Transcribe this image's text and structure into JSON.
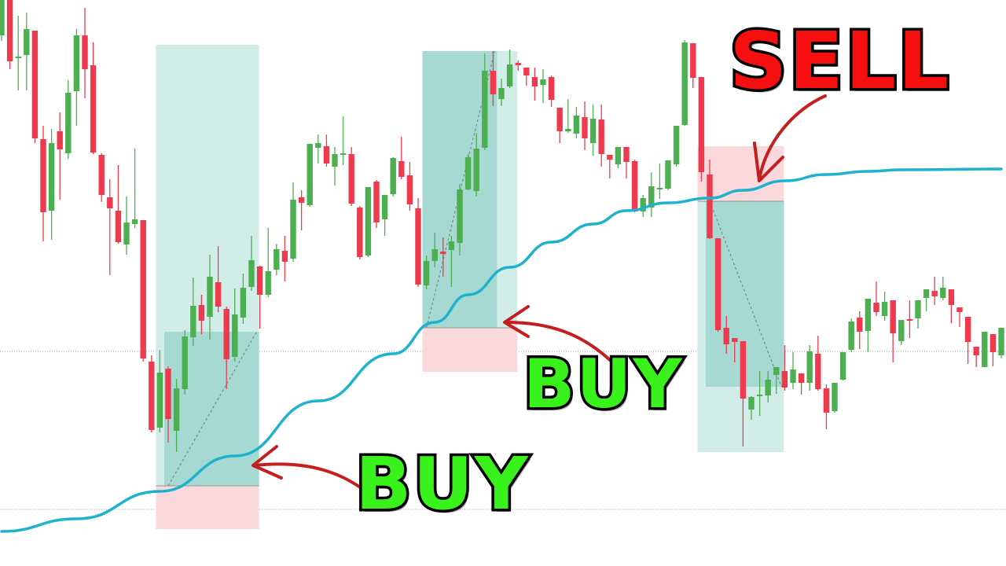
{
  "chart_data": {
    "type": "candlestick",
    "title": "",
    "xlabel": "",
    "ylabel": "",
    "ylim": [
      0,
      72
    ],
    "grid": false,
    "candle_format": [
      "open",
      "high",
      "low",
      "close"
    ],
    "candles": [
      [
        67.5,
        72,
        66.8,
        72
      ],
      [
        72,
        72,
        63.2,
        64.2
      ],
      [
        64.7,
        70,
        60.5,
        64.8
      ],
      [
        65,
        70.4,
        60.5,
        68.3
      ],
      [
        68.1,
        68.1,
        53.8,
        54.4
      ],
      [
        54.3,
        56,
        41.3,
        45
      ],
      [
        45.2,
        55.6,
        41.5,
        53.8
      ],
      [
        55.3,
        57.7,
        46.6,
        53
      ],
      [
        52.5,
        61.8,
        51.8,
        60.2
      ],
      [
        60.4,
        68.3,
        56,
        67.5
      ],
      [
        67.5,
        71,
        59.5,
        63.2
      ],
      [
        63.7,
        66.6,
        52.4,
        52.6
      ],
      [
        52.3,
        52.5,
        46.3,
        47.2
      ],
      [
        46.9,
        49.2,
        37,
        45.5
      ],
      [
        45.2,
        51,
        41,
        41.2
      ],
      [
        40.9,
        47,
        39.6,
        43.7
      ],
      [
        43.5,
        53.1,
        43,
        44.1
      ],
      [
        44,
        44,
        26,
        26.4
      ],
      [
        26,
        26.8,
        17,
        17.3
      ],
      [
        17.6,
        27.5,
        17,
        24.6
      ],
      [
        25.1,
        25.4,
        15.7,
        18.7
      ],
      [
        17.2,
        23.8,
        14.5,
        22.6
      ],
      [
        22.5,
        30,
        21.8,
        29.2
      ],
      [
        29.1,
        36.7,
        28,
        33.1
      ],
      [
        33.2,
        34.5,
        29.5,
        31.2
      ],
      [
        31.7,
        39.6,
        28.8,
        36.8
      ],
      [
        36.1,
        40.7,
        32.3,
        33
      ],
      [
        32.7,
        33,
        22.5,
        26.3
      ],
      [
        26.6,
        35.3,
        26,
        32
      ],
      [
        31.6,
        37.2,
        30.8,
        35.4
      ],
      [
        35.5,
        42,
        35,
        38.9
      ],
      [
        38.1,
        38.2,
        30.2,
        34.5
      ],
      [
        34.5,
        43,
        34.2,
        37.5
      ],
      [
        37.7,
        41,
        37,
        40.3
      ],
      [
        40.1,
        42,
        36.2,
        38.7
      ],
      [
        39.1,
        48.8,
        38.7,
        46.6
      ],
      [
        46.9,
        47.8,
        42.7,
        46.2
      ],
      [
        45.9,
        53.7,
        45.7,
        53.7
      ],
      [
        53.2,
        54.9,
        51.2,
        53.8
      ],
      [
        53.4,
        54.9,
        50.8,
        51.2
      ],
      [
        50.8,
        53.3,
        48.4,
        52.4
      ],
      [
        52.4,
        57.2,
        51,
        52.5
      ],
      [
        52.4,
        53.3,
        45.8,
        46.1
      ],
      [
        45.6,
        45.8,
        39,
        39.3
      ],
      [
        39.5,
        48.2,
        39.3,
        48.2
      ],
      [
        48.9,
        49.1,
        43,
        43.7
      ],
      [
        44.1,
        47.2,
        42,
        47.2
      ],
      [
        47.3,
        52,
        47,
        51.9
      ],
      [
        51.5,
        54.6,
        49.2,
        49.5
      ],
      [
        49.7,
        51.4,
        45.2,
        46
      ],
      [
        45.5,
        46.8,
        35.5,
        35.8
      ],
      [
        35.7,
        39.5,
        35.2,
        38.8
      ],
      [
        38.8,
        42.4,
        38,
        40.3
      ],
      [
        40,
        41.8,
        36.8,
        39.7
      ],
      [
        40.2,
        42,
        35.5,
        41.3
      ],
      [
        41.1,
        48.6,
        39.5,
        47.9
      ],
      [
        47.9,
        52.4,
        47.8,
        52
      ],
      [
        47.7,
        55.1,
        47,
        53.1
      ],
      [
        53.2,
        65.2,
        52.9,
        63
      ],
      [
        63,
        65.5,
        58.5,
        60
      ],
      [
        59.4,
        62,
        58.5,
        60.8
      ],
      [
        61,
        65.7,
        60.8,
        63.8
      ],
      [
        64,
        64.3,
        63,
        63.7
      ],
      [
        63.4,
        63.4,
        61.1,
        62.4
      ],
      [
        62.2,
        63.4,
        59.2,
        61
      ],
      [
        61.2,
        63.2,
        58.9,
        61.9
      ],
      [
        62.2,
        62.4,
        58.4,
        59.3
      ],
      [
        58.3,
        58.3,
        53.8,
        55.3
      ],
      [
        55.3,
        59.4,
        55.1,
        55.6
      ],
      [
        55,
        58.4,
        54.4,
        57.3
      ],
      [
        57.1,
        59.1,
        52.9,
        54.4
      ],
      [
        53.8,
        58.7,
        52.2,
        56.9
      ],
      [
        56.8,
        58.7,
        50.8,
        52.4
      ],
      [
        52.3,
        52.3,
        49.3,
        51.7
      ],
      [
        51.1,
        53.3,
        50.6,
        53.3
      ],
      [
        53.3,
        53.3,
        49.3,
        51.4
      ],
      [
        51.5,
        51.7,
        45,
        45.1
      ],
      [
        45.1,
        47.2,
        44.4,
        46.8
      ],
      [
        45.6,
        50.1,
        44.4,
        48.3
      ],
      [
        47.9,
        51.2,
        46.7,
        48.1
      ],
      [
        48,
        51.6,
        47.8,
        51.6
      ],
      [
        51.1,
        56,
        50.8,
        56
      ],
      [
        56.1,
        66.9,
        56,
        66.6
      ],
      [
        66.5,
        66.5,
        60.8,
        62.1
      ],
      [
        62.2,
        62.2,
        48.9,
        50.1
      ],
      [
        49.8,
        51.7,
        41.6,
        41.7
      ],
      [
        41.7,
        41.7,
        29.8,
        30
      ],
      [
        30.3,
        31.8,
        27,
        28.2
      ],
      [
        29,
        29,
        25.9,
        28.5
      ],
      [
        28.6,
        28.6,
        15.2,
        21.3
      ],
      [
        19.9,
        21.6,
        18.6,
        21.5
      ],
      [
        21.6,
        24.8,
        19.1,
        21.8
      ],
      [
        21.7,
        24.8,
        20.8,
        23.7
      ],
      [
        24.3,
        25.3,
        21.9,
        25.3
      ],
      [
        24.8,
        28.1,
        22.3,
        22.7
      ],
      [
        23.3,
        27.2,
        22.5,
        25
      ],
      [
        24.5,
        24.5,
        21.8,
        23.3
      ],
      [
        23.3,
        28.1,
        22.3,
        27.3
      ],
      [
        27,
        29.3,
        22.3,
        22.5
      ],
      [
        22.6,
        23.1,
        17.4,
        19.5
      ],
      [
        19.7,
        23.3,
        19.5,
        23.3
      ],
      [
        23.7,
        27.2,
        23.6,
        27.2
      ],
      [
        27.5,
        31.5,
        27.2,
        31.1
      ],
      [
        31.6,
        32.4,
        27.6,
        29.8
      ],
      [
        29.9,
        34,
        27.2,
        34
      ],
      [
        33.5,
        36.2,
        31.8,
        32.3
      ],
      [
        31.8,
        34.9,
        31.2,
        33.6
      ],
      [
        33.8,
        33.8,
        25.9,
        29.6
      ],
      [
        28.6,
        31.3,
        28.1,
        31.3
      ],
      [
        31.4,
        33.8,
        29,
        31.2
      ],
      [
        31.5,
        33.8,
        30.2,
        33.8
      ],
      [
        34.1,
        35.2,
        32.4,
        35.2
      ],
      [
        35,
        36.8,
        33.2,
        34.3
      ],
      [
        34.1,
        36.8,
        33.8,
        35.4
      ],
      [
        35.2,
        35.2,
        30.9,
        33.2
      ],
      [
        32.9,
        32.9,
        30.4,
        32.3
      ],
      [
        31.7,
        31.7,
        25.7,
        28.5
      ],
      [
        27.9,
        27.9,
        25.3,
        26.8
      ],
      [
        25.3,
        29.8,
        25.3,
        29.8
      ],
      [
        29.5,
        29.5,
        25.4,
        27.2
      ],
      [
        26.8,
        30.3,
        26.4,
        30.3
      ]
    ],
    "moving_average": [
      [
        0,
        4.4
      ],
      [
        9,
        6.0
      ],
      [
        19,
        9.5
      ],
      [
        28,
        14
      ],
      [
        38,
        21
      ],
      [
        47,
        27
      ],
      [
        52,
        31
      ],
      [
        56,
        34.5
      ],
      [
        61,
        38
      ],
      [
        66,
        41.2
      ],
      [
        71,
        43.5
      ],
      [
        75,
        45.2
      ],
      [
        80,
        46.2
      ],
      [
        85,
        46.8
      ],
      [
        89,
        47.8
      ],
      [
        94,
        49
      ],
      [
        99,
        49.8
      ],
      [
        104,
        50.2
      ],
      [
        108,
        50.4
      ],
      [
        120,
        50.5
      ]
    ],
    "horizontal_lines": [
      27.3,
      7.2
    ],
    "positions": [
      {
        "side": "long",
        "from_candle": 19,
        "to_candle": 31,
        "target": 66.3,
        "entry": 10.2,
        "stop": 4.7,
        "progress_start": 20,
        "progress_end": 31,
        "progress_price": 29.8
      },
      {
        "side": "long",
        "from_candle": 51,
        "to_candle": 62,
        "target": 65.5,
        "entry": 30.3,
        "stop": 24.7,
        "progress_start": 51,
        "progress_end": 59,
        "progress_price": 65.5
      },
      {
        "side": "short",
        "from_candle": 84,
        "to_candle": 94,
        "target": 14.5,
        "entry": 46.4,
        "stop": 53.4,
        "progress_start": 85,
        "progress_end": 94,
        "progress_price": 22.8
      }
    ],
    "colors": {
      "up": "#4caf50",
      "down": "#ef3a4e",
      "moving_average": "#1db3cc",
      "profit_zone": "#d2ede8",
      "profit_filled": "#a6d9d1",
      "loss_zone": "#fbd8dc",
      "arrow": "#c41e1e"
    }
  },
  "annotations": {
    "buy_1": {
      "text": "BUY",
      "color": "#39f21b"
    },
    "buy_2": {
      "text": "BUY",
      "color": "#39f21b"
    },
    "sell": {
      "text": "SELL",
      "color": "#f50f0f"
    }
  }
}
